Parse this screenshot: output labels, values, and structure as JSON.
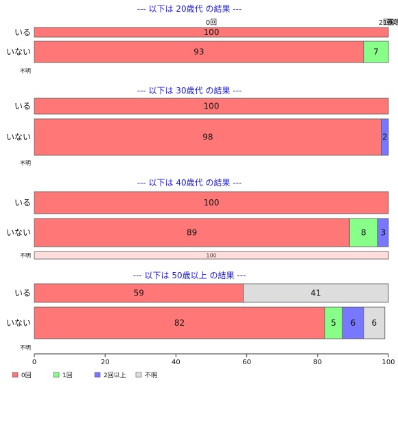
{
  "chart_data": {
    "type": "bar",
    "orientation": "horizontal",
    "stacked": true,
    "percent_axis": {
      "range": [
        0,
        100
      ],
      "ticks": [
        0,
        20,
        40,
        60,
        80,
        100
      ]
    },
    "categories_order": [
      "0回",
      "1回",
      "2回以上",
      "不明"
    ],
    "colors": {
      "0回": "#ff7777",
      "1回": "#88ff88",
      "2回以上": "#7777ff",
      "不明": "#dddddd",
      "不明_row": "#ffdddd"
    },
    "top_header_labels": [
      "0回",
      "1回",
      "2回以上",
      "不明"
    ],
    "panels": [
      {
        "title": "--- 以下は 20歳代 の結果 ---",
        "rows": [
          {
            "label": "いる",
            "values": {
              "0回": 100
            }
          },
          {
            "label": "いない",
            "values": {
              "0回": 93,
              "1回": 7
            }
          },
          {
            "label": "不明",
            "values": {}
          }
        ]
      },
      {
        "title": "--- 以下は 30歳代 の結果 ---",
        "rows": [
          {
            "label": "いる",
            "values": {
              "0回": 100
            }
          },
          {
            "label": "いない",
            "values": {
              "0回": 98,
              "2回以上": 2
            }
          },
          {
            "label": "不明",
            "values": {}
          }
        ]
      },
      {
        "title": "--- 以下は 40歳代 の結果 ---",
        "rows": [
          {
            "label": "いる",
            "values": {
              "0回": 100
            }
          },
          {
            "label": "いない",
            "values": {
              "0回": 89,
              "1回": 8,
              "2回以上": 3
            }
          },
          {
            "label": "不明",
            "values": {
              "不明": 100
            }
          }
        ]
      },
      {
        "title": "--- 以下は 50歳以上 の結果 ---",
        "rows": [
          {
            "label": "いる",
            "values": {
              "0回": 59,
              "不明": 41
            }
          },
          {
            "label": "いない",
            "values": {
              "0回": 82,
              "1回": 5,
              "2回以上": 6,
              "不明": 6
            }
          },
          {
            "label": "不明",
            "values": {}
          }
        ]
      }
    ],
    "legend": {
      "placement": "bottom-left",
      "items": [
        "0回",
        "1回",
        "2回以上",
        "不明"
      ]
    }
  }
}
